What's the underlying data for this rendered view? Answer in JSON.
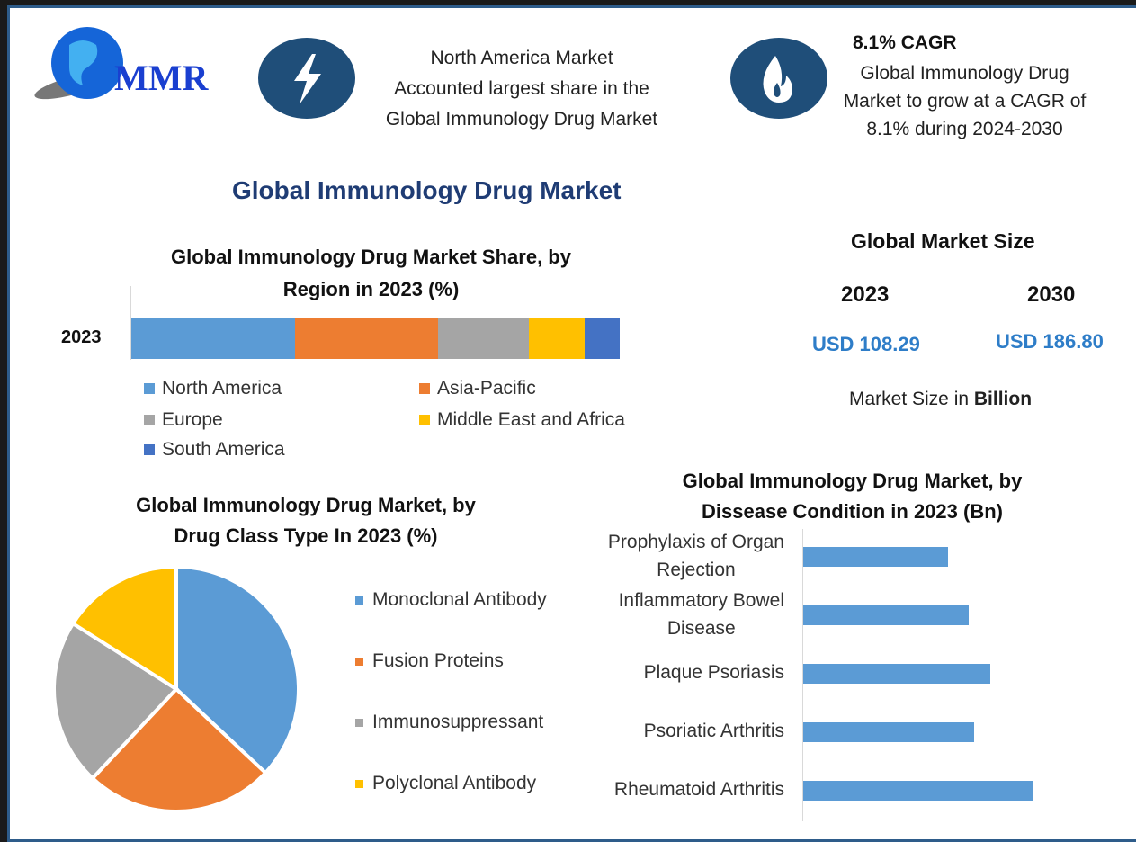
{
  "logo": {
    "text": "MMR"
  },
  "callout1": {
    "lines": [
      "North America Market",
      "Accounted largest share in the",
      "Global Immunology Drug Market"
    ],
    "icon": "lightning-icon"
  },
  "callout2": {
    "heading": "8.1% CAGR",
    "lines": [
      "Global Immunology Drug",
      "Market to grow at a CAGR of",
      "8.1% during 2024-2030"
    ],
    "icon": "flame-icon"
  },
  "main_title": "Global Immunology Drug Market",
  "market_size": {
    "title": "Global Market Size",
    "year1": "2023",
    "year2": "2030",
    "value1": "USD 108.29",
    "value2": "USD 186.80",
    "note_prefix": "Market Size in ",
    "note_bold": "Billion"
  },
  "colors": {
    "blue": "#5b9bd5",
    "orange": "#ed7d31",
    "gray": "#a5a5a5",
    "yellow": "#ffc000",
    "darkblue": "#4472c4"
  },
  "chart_data": [
    {
      "type": "bar",
      "stacked": true,
      "title_lines": [
        "Global Immunology Drug Market Share, by",
        "Region in 2023 (%)"
      ],
      "categories": [
        "2023"
      ],
      "series": [
        {
          "name": "North America",
          "values": [
            33.5
          ]
        },
        {
          "name": "Asia-Pacific",
          "values": [
            29.3
          ]
        },
        {
          "name": "Europe",
          "values": [
            18.6
          ]
        },
        {
          "name": "Middle East and Africa",
          "values": [
            11.4
          ]
        },
        {
          "name": "South America",
          "values": [
            7.2
          ]
        }
      ]
    },
    {
      "type": "pie",
      "title_lines": [
        "Global Immunology Drug Market, by",
        "Drug Class Type In 2023 (%)"
      ],
      "labels": [
        "Monoclonal Antibody",
        "Fusion Proteins",
        "Immunosuppressant",
        "Polyclonal Antibody"
      ],
      "values": [
        37,
        25,
        22,
        16
      ]
    },
    {
      "type": "bar",
      "orientation": "horizontal",
      "title_lines": [
        "Global Immunology Drug Market, by",
        "Dissease Condition in 2023 (Bn)"
      ],
      "categories": [
        [
          "Prophylaxis of Organ",
          "Rejection"
        ],
        [
          "Inflammatory Bowel",
          "Disease"
        ],
        [
          "Plaque Psoriasis"
        ],
        [
          "Psoriatic Arthritis"
        ],
        [
          "Rheumatoid Arthritis"
        ]
      ],
      "values": [
        16.1,
        18.4,
        20.8,
        19.0,
        25.5
      ]
    }
  ]
}
